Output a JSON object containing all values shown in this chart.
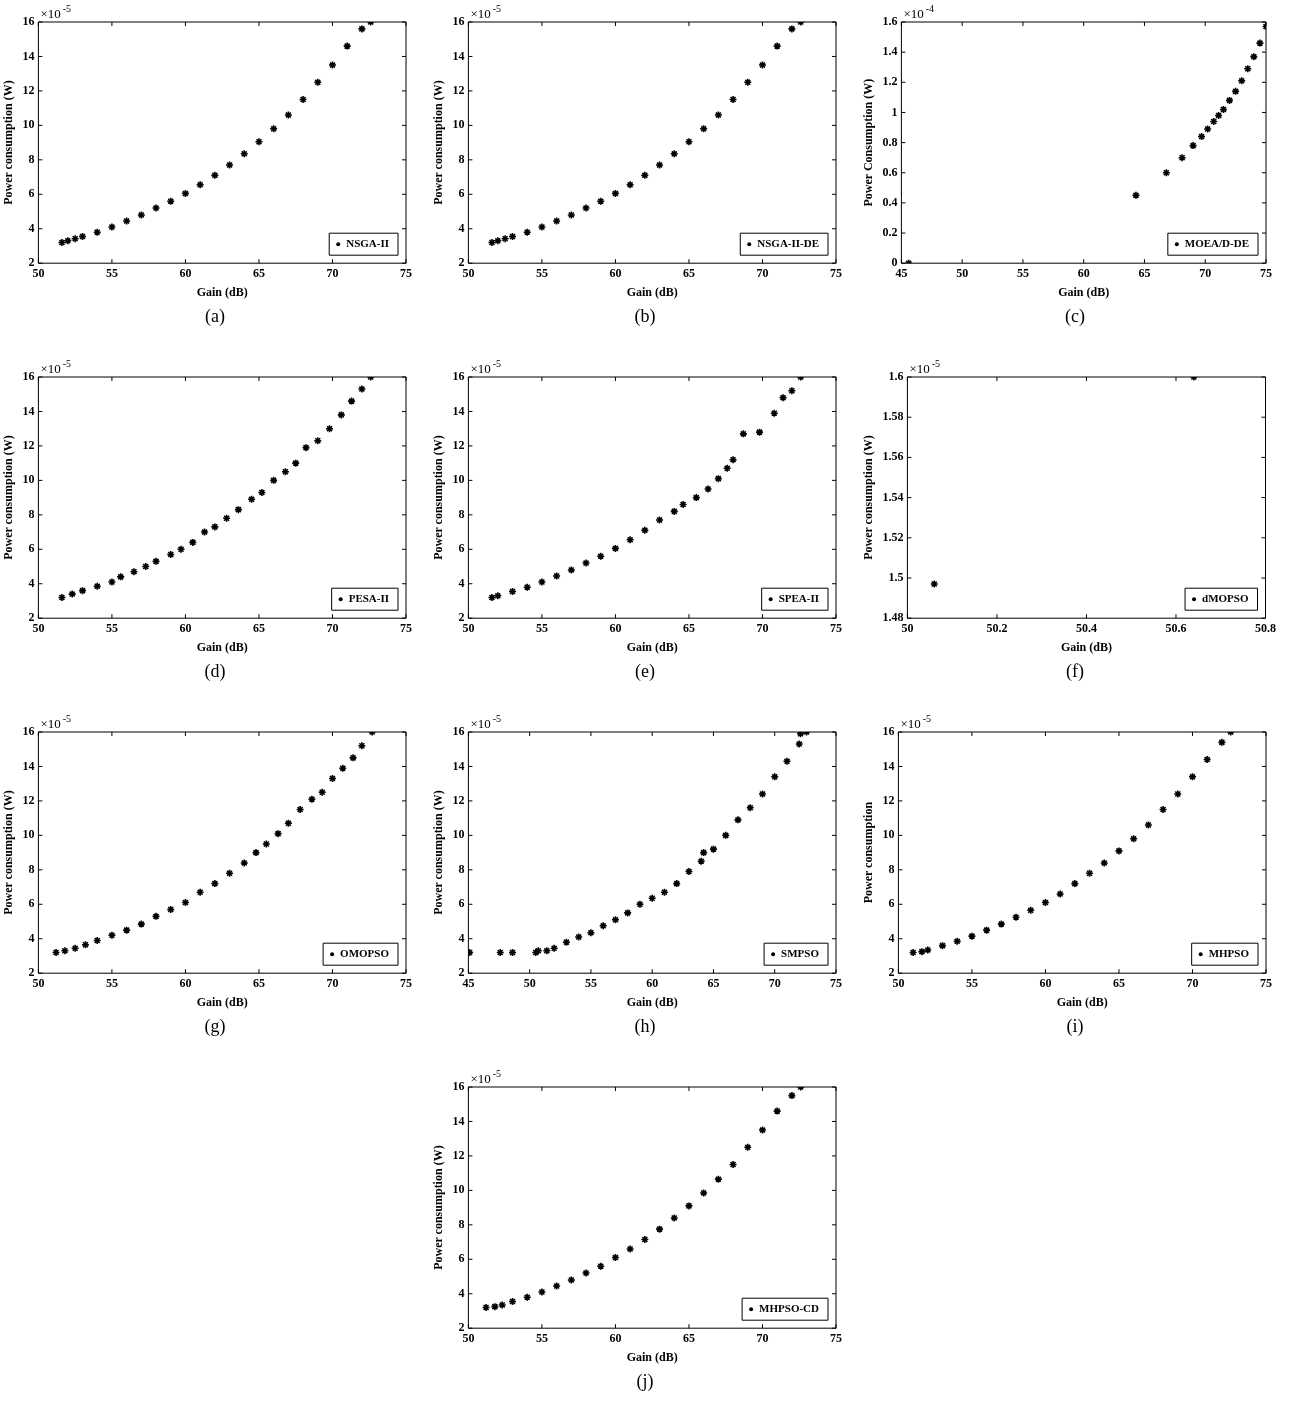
{
  "chart_data": [
    {
      "type": "scatter",
      "xlabel": "Gain (dB)",
      "ylabel": "Power consumption (W)",
      "annotations": [
        "×10$^{-5}$",
        "(a)"
      ],
      "xlim": [
        50,
        75
      ],
      "xticks": [
        50,
        55,
        60,
        65,
        70,
        75
      ],
      "ylim": [
        2,
        16
      ],
      "yticks": [
        2,
        4,
        6,
        8,
        10,
        12,
        14,
        16
      ],
      "legend": "bottom right",
      "marker": "cross",
      "grid": false,
      "series": [
        {
          "name": "NSGA-II",
          "color": "#000000",
          "x": [
            51.6,
            52,
            52.5,
            53,
            54,
            55,
            56,
            57,
            58,
            59,
            60,
            61,
            62,
            63,
            64,
            65,
            66,
            67,
            68,
            69,
            70,
            71,
            72,
            72.6
          ],
          "values": [
            3.2,
            3.3,
            3.42,
            3.55,
            3.8,
            4.1,
            4.45,
            4.8,
            5.2,
            5.6,
            6.05,
            6.55,
            7.1,
            7.7,
            8.35,
            9.05,
            9.8,
            10.6,
            11.5,
            12.5,
            13.5,
            14.6,
            15.6,
            16
          ]
        }
      ]
    },
    {
      "type": "scatter",
      "xlabel": "Gain (dB)",
      "ylabel": "Power consumption (W)",
      "annotations": [
        "×10$^{-5}$",
        "(b)"
      ],
      "xlim": [
        50,
        75
      ],
      "xticks": [
        50,
        55,
        60,
        65,
        70,
        75
      ],
      "ylim": [
        2,
        16
      ],
      "yticks": [
        2,
        4,
        6,
        8,
        10,
        12,
        14,
        16
      ],
      "legend": "bottom right",
      "marker": "cross",
      "grid": false,
      "series": [
        {
          "name": "NSGA-II-DE",
          "color": "#000000",
          "x": [
            51.6,
            52,
            52.5,
            53,
            54,
            55,
            56,
            57,
            58,
            59,
            60,
            61,
            62,
            63,
            64,
            65,
            66,
            67,
            68,
            69,
            70,
            71,
            72,
            72.6
          ],
          "values": [
            3.2,
            3.3,
            3.42,
            3.55,
            3.8,
            4.1,
            4.45,
            4.8,
            5.2,
            5.6,
            6.05,
            6.55,
            7.1,
            7.7,
            8.35,
            9.05,
            9.8,
            10.6,
            11.5,
            12.5,
            13.5,
            14.6,
            15.6,
            16
          ]
        }
      ]
    },
    {
      "type": "scatter",
      "xlabel": "Gain (dB)",
      "ylabel": "Power Consumption (W)",
      "annotations": [
        "×10$^{-4}$",
        "(c)"
      ],
      "xlim": [
        45,
        75
      ],
      "xticks": [
        45,
        50,
        55,
        60,
        65,
        70,
        75
      ],
      "ylim": [
        0,
        1.6
      ],
      "yticks": [
        0,
        0.2,
        0.4,
        0.6,
        0.8,
        1,
        1.2,
        1.4,
        1.6
      ],
      "legend": "bottom right",
      "marker": "cross",
      "grid": false,
      "series": [
        {
          "name": "MOEA/D-DE",
          "color": "#000000",
          "x": [
            45.6,
            64.3,
            66.8,
            68.1,
            69,
            69.7,
            70.2,
            70.7,
            71.1,
            71.5,
            72,
            72.5,
            73,
            73.5,
            74,
            74.5,
            75
          ],
          "values": [
            0,
            0.45,
            0.6,
            0.7,
            0.78,
            0.84,
            0.89,
            0.94,
            0.98,
            1.02,
            1.08,
            1.14,
            1.21,
            1.29,
            1.37,
            1.46,
            1.57
          ]
        }
      ]
    },
    {
      "type": "scatter",
      "xlabel": "Gain (dB)",
      "ylabel": "Power consumption (W)",
      "annotations": [
        "×10$^{-5}$",
        "(d)"
      ],
      "xlim": [
        50,
        75
      ],
      "xticks": [
        50,
        55,
        60,
        65,
        70,
        75
      ],
      "ylim": [
        2,
        16
      ],
      "yticks": [
        2,
        4,
        6,
        8,
        10,
        12,
        14,
        16
      ],
      "legend": "bottom right",
      "marker": "cross",
      "grid": false,
      "series": [
        {
          "name": "PESA-II",
          "color": "#000000",
          "x": [
            51.6,
            52.3,
            53,
            54,
            55,
            55.6,
            56.5,
            57.3,
            58,
            59,
            59.7,
            60.5,
            61.3,
            62,
            62.8,
            63.6,
            64.5,
            65.2,
            66,
            66.8,
            67.5,
            68.2,
            69,
            69.8,
            70.6,
            71.3,
            72,
            72.6
          ],
          "values": [
            3.2,
            3.4,
            3.6,
            3.85,
            4.1,
            4.4,
            4.7,
            5.0,
            5.3,
            5.7,
            6.0,
            6.4,
            7.0,
            7.3,
            7.8,
            8.3,
            8.9,
            9.3,
            10.0,
            10.5,
            11.0,
            11.9,
            12.3,
            13.0,
            13.8,
            14.6,
            15.3,
            16
          ]
        }
      ]
    },
    {
      "type": "scatter",
      "xlabel": "Gain (dB)",
      "ylabel": "Power consumption (W)",
      "annotations": [
        "×10$^{-5}$",
        "(e)"
      ],
      "xlim": [
        50,
        75
      ],
      "xticks": [
        50,
        55,
        60,
        65,
        70,
        75
      ],
      "ylim": [
        2,
        16
      ],
      "yticks": [
        2,
        4,
        6,
        8,
        10,
        12,
        14,
        16
      ],
      "legend": "bottom right",
      "marker": "cross",
      "grid": false,
      "series": [
        {
          "name": "SPEA-II",
          "color": "#000000",
          "x": [
            51.6,
            52,
            53,
            54,
            55,
            56,
            57,
            58,
            59,
            60,
            61,
            62,
            63,
            64,
            64.6,
            65.5,
            66.3,
            67,
            67.6,
            68,
            68.7,
            69.8,
            70.8,
            71.4,
            72,
            72.6
          ],
          "values": [
            3.2,
            3.3,
            3.55,
            3.8,
            4.1,
            4.45,
            4.8,
            5.2,
            5.6,
            6.05,
            6.55,
            7.1,
            7.7,
            8.2,
            8.6,
            9.0,
            9.5,
            10.1,
            10.7,
            11.2,
            12.7,
            12.8,
            13.9,
            14.8,
            15.2,
            16
          ]
        }
      ]
    },
    {
      "type": "scatter",
      "xlabel": "Gain (dB)",
      "ylabel": "Power consumption (W)",
      "annotations": [
        "×10$^{-5}$",
        "(f)"
      ],
      "xlim": [
        50,
        50.8
      ],
      "xticks": [
        50,
        50.2,
        50.4,
        50.6,
        50.8
      ],
      "ylim": [
        1.48,
        1.6
      ],
      "yticks": [
        1.48,
        1.5,
        1.52,
        1.54,
        1.56,
        1.58,
        1.6
      ],
      "legend": "bottom right",
      "marker": "cross",
      "grid": false,
      "series": [
        {
          "name": "dMOPSO",
          "color": "#000000",
          "x": [
            50.06,
            50.64
          ],
          "values": [
            1.497,
            1.6
          ]
        }
      ]
    },
    {
      "type": "scatter",
      "xlabel": "Gain (dB)",
      "ylabel": "Power consumption (W)",
      "annotations": [
        "×10$^{-5}$",
        "(g)"
      ],
      "xlim": [
        50,
        75
      ],
      "xticks": [
        50,
        55,
        60,
        65,
        70,
        75
      ],
      "ylim": [
        2,
        16
      ],
      "yticks": [
        2,
        4,
        6,
        8,
        10,
        12,
        14,
        16
      ],
      "legend": "bottom right",
      "marker": "cross",
      "grid": false,
      "series": [
        {
          "name": "OMOPSO",
          "color": "#000000",
          "x": [
            51.2,
            51.8,
            52.5,
            53.2,
            54,
            55,
            56,
            57,
            58,
            59,
            60,
            61,
            62,
            63,
            64,
            64.8,
            65.5,
            66.3,
            67,
            67.8,
            68.6,
            69.3,
            70,
            70.7,
            71.4,
            72,
            72.7
          ],
          "values": [
            3.2,
            3.3,
            3.45,
            3.65,
            3.9,
            4.2,
            4.5,
            4.85,
            5.3,
            5.7,
            6.1,
            6.7,
            7.2,
            7.8,
            8.4,
            9.0,
            9.5,
            10.1,
            10.7,
            11.5,
            12.1,
            12.5,
            13.3,
            13.9,
            14.5,
            15.2,
            16
          ]
        }
      ]
    },
    {
      "type": "scatter",
      "xlabel": "Gain (dB)",
      "ylabel": "Power consumption (W)",
      "annotations": [
        "×10$^{-5}$",
        "(h)"
      ],
      "xlim": [
        45,
        75
      ],
      "xticks": [
        45,
        50,
        55,
        60,
        65,
        70,
        75
      ],
      "ylim": [
        2,
        16
      ],
      "yticks": [
        2,
        4,
        6,
        8,
        10,
        12,
        14,
        16
      ],
      "legend": "bottom right",
      "marker": "cross",
      "grid": false,
      "series": [
        {
          "name": "SMPSO",
          "color": "#000000",
          "x": [
            45.1,
            47.6,
            48.6,
            50.5,
            50.7,
            51.4,
            52,
            53,
            54,
            55,
            56,
            57,
            58,
            59,
            60,
            61,
            62,
            63,
            64,
            64.2,
            65,
            66,
            67,
            68,
            69,
            70,
            71,
            72,
            72.1,
            72.6
          ],
          "values": [
            3.2,
            3.2,
            3.2,
            3.2,
            3.3,
            3.3,
            3.45,
            3.8,
            4.1,
            4.35,
            4.75,
            5.1,
            5.5,
            6.0,
            6.35,
            6.7,
            7.2,
            7.9,
            8.5,
            9.0,
            9.2,
            10.0,
            10.9,
            11.6,
            12.4,
            13.4,
            14.3,
            15.3,
            15.9,
            16
          ]
        }
      ]
    },
    {
      "type": "scatter",
      "xlabel": "Gain (dB)",
      "ylabel": "Power consumption",
      "annotations": [
        "×10$^{-5}$",
        "(i)"
      ],
      "xlim": [
        50,
        75
      ],
      "xticks": [
        50,
        55,
        60,
        65,
        70,
        75
      ],
      "ylim": [
        2,
        16
      ],
      "yticks": [
        2,
        4,
        6,
        8,
        10,
        12,
        14,
        16
      ],
      "legend": "bottom right",
      "marker": "cross",
      "grid": false,
      "series": [
        {
          "name": "MHPSO",
          "color": "#000000",
          "x": [
            51,
            51.6,
            52,
            53,
            54,
            55,
            56,
            57,
            58,
            59,
            60,
            61,
            62,
            63,
            64,
            65,
            66,
            67,
            68,
            69,
            70,
            71,
            72,
            72.6
          ],
          "values": [
            3.2,
            3.25,
            3.35,
            3.6,
            3.85,
            4.15,
            4.5,
            4.85,
            5.25,
            5.65,
            6.1,
            6.6,
            7.2,
            7.8,
            8.4,
            9.1,
            9.8,
            10.6,
            11.5,
            12.4,
            13.4,
            14.4,
            15.4,
            16
          ]
        }
      ]
    },
    {
      "type": "scatter",
      "xlabel": "Gain (dB)",
      "ylabel": "Power consumption (W)",
      "annotations": [
        "×10$^{-5}$",
        "(j)"
      ],
      "xlim": [
        50,
        75
      ],
      "xticks": [
        50,
        55,
        60,
        65,
        70,
        75
      ],
      "ylim": [
        2,
        16
      ],
      "yticks": [
        2,
        4,
        6,
        8,
        10,
        12,
        14,
        16
      ],
      "legend": "bottom right",
      "marker": "cross",
      "grid": false,
      "series": [
        {
          "name": "MHPSO-CD",
          "color": "#000000",
          "x": [
            51.2,
            51.8,
            52.3,
            53,
            54,
            55,
            56,
            57,
            58,
            59,
            60,
            61,
            62,
            63,
            64,
            65,
            66,
            67,
            68,
            69,
            70,
            71,
            72,
            72.6
          ],
          "values": [
            3.2,
            3.25,
            3.35,
            3.55,
            3.8,
            4.1,
            4.45,
            4.8,
            5.2,
            5.6,
            6.1,
            6.6,
            7.15,
            7.75,
            8.4,
            9.1,
            9.85,
            10.65,
            11.5,
            12.5,
            13.5,
            14.6,
            15.5,
            16
          ]
        }
      ]
    }
  ]
}
